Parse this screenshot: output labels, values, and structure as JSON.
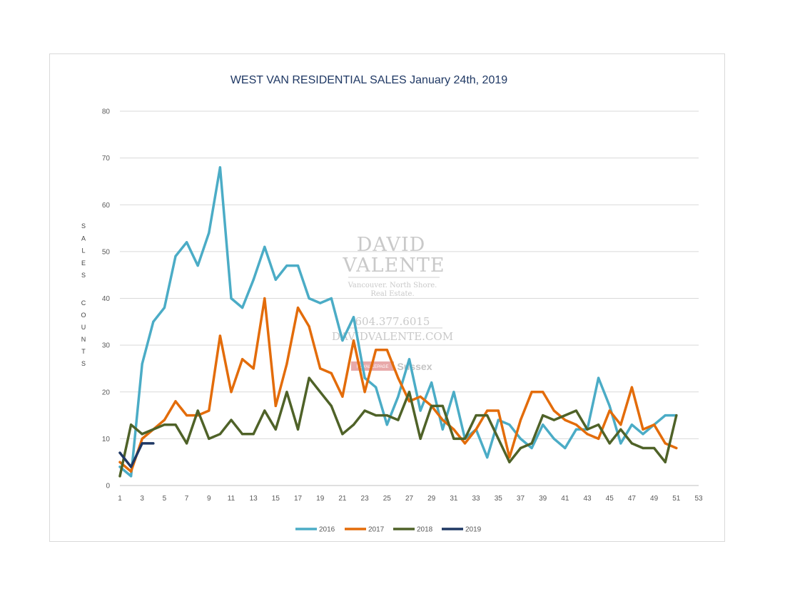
{
  "chart_data": {
    "type": "line",
    "title": "WEST VAN RESIDENTIAL SALES January 24th, 2019",
    "xlabel": "",
    "ylabel": "SALES COUNTS",
    "ylabel_letters_top": [
      "S",
      "A",
      "L",
      "E",
      "S"
    ],
    "ylabel_letters_bottom": [
      "C",
      "O",
      "U",
      "N",
      "T",
      "S"
    ],
    "xlim": [
      1,
      53
    ],
    "ylim": [
      0,
      80
    ],
    "x_ticks": [
      1,
      3,
      5,
      7,
      9,
      11,
      13,
      15,
      17,
      19,
      21,
      23,
      25,
      27,
      29,
      31,
      33,
      35,
      37,
      39,
      41,
      43,
      45,
      47,
      49,
      51,
      53
    ],
    "y_ticks": [
      0,
      10,
      20,
      30,
      40,
      50,
      60,
      70,
      80
    ],
    "grid": "horizontal",
    "legend_position": "bottom",
    "series": [
      {
        "name": "2016",
        "color": "#4bacc6",
        "values": [
          4,
          2,
          26,
          35,
          38,
          49,
          52,
          47,
          54,
          68,
          40,
          38,
          44,
          51,
          44,
          47,
          47,
          40,
          39,
          40,
          31,
          36,
          23,
          21,
          13,
          19,
          27,
          16,
          22,
          12,
          20,
          10,
          12,
          6,
          14,
          13,
          10,
          8,
          13,
          10,
          8,
          12,
          12,
          23,
          17,
          9,
          13,
          11,
          13,
          15,
          15
        ]
      },
      {
        "name": "2017",
        "color": "#e36c0a",
        "values": [
          5,
          3,
          10,
          12,
          14,
          18,
          15,
          15,
          16,
          32,
          20,
          27,
          25,
          40,
          17,
          26,
          38,
          34,
          25,
          24,
          19,
          31,
          20,
          29,
          29,
          23,
          18,
          19,
          17,
          14,
          12,
          9,
          12,
          16,
          16,
          6,
          14,
          20,
          20,
          16,
          14,
          13,
          11,
          10,
          16,
          13,
          21,
          12,
          13,
          9,
          8
        ]
      },
      {
        "name": "2018",
        "color": "#4f6228",
        "values": [
          2,
          13,
          11,
          12,
          13,
          13,
          9,
          16,
          10,
          11,
          14,
          11,
          11,
          16,
          12,
          20,
          12,
          23,
          20,
          17,
          11,
          13,
          16,
          15,
          15,
          14,
          20,
          10,
          17,
          17,
          10,
          10,
          15,
          15,
          10,
          5,
          8,
          9,
          15,
          14,
          15,
          16,
          12,
          13,
          9,
          12,
          9,
          8,
          8,
          5,
          15
        ]
      },
      {
        "name": "2019",
        "color": "#1f3864",
        "values": [
          7,
          4,
          9,
          9
        ]
      }
    ]
  },
  "watermark": {
    "line1": "DAVID",
    "line2": "VALENTE",
    "tagline1": "Vancouver. North Shore.",
    "tagline2": "Real Estate.",
    "phone": "604.377.6015",
    "website": "DAVIDVALENTE.COM",
    "brokerage_badge": "ROYAL LEPAGE",
    "brokerage": "Sussex"
  }
}
